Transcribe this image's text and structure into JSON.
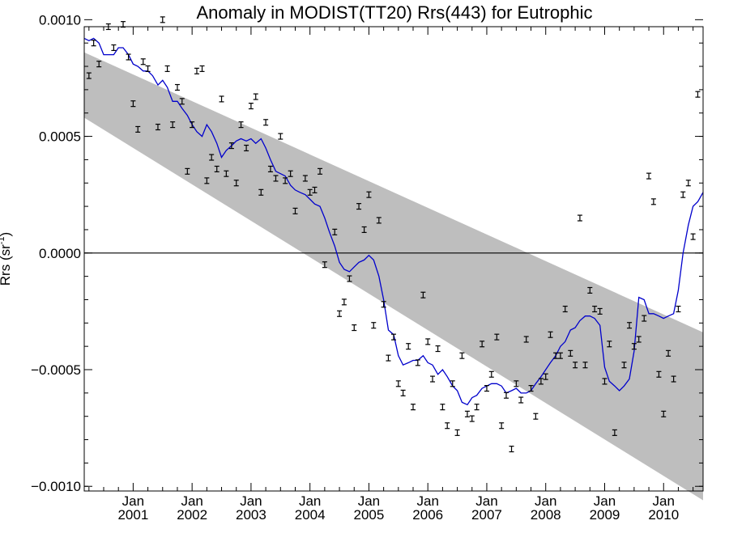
{
  "chart_data": {
    "type": "line",
    "title": "Anomaly in MODIST(TT20) Rrs(443) for Eutrophic",
    "xlabel": "",
    "ylabel": "Rrs (sr",
    "ylabel_superscript": "-1",
    "ylabel_close": ")",
    "xlim": [
      2000.17,
      2010.67
    ],
    "ylim": [
      -0.00102,
      0.00097
    ],
    "y_ticks": [
      {
        "value": 0.001,
        "label": "0.0010"
      },
      {
        "value": 0.0005,
        "label": "0.0005"
      },
      {
        "value": 0.0,
        "label": "0.0000"
      },
      {
        "value": -0.0005,
        "label": "−0.0005"
      },
      {
        "value": -0.001,
        "label": "−0.0010"
      }
    ],
    "x_ticks": [
      {
        "value": 2001.0,
        "month": "Jan",
        "year": "2001"
      },
      {
        "value": 2002.0,
        "month": "Jan",
        "year": "2002"
      },
      {
        "value": 2003.0,
        "month": "Jan",
        "year": "2003"
      },
      {
        "value": 2004.0,
        "month": "Jan",
        "year": "2004"
      },
      {
        "value": 2005.0,
        "month": "Jan",
        "year": "2005"
      },
      {
        "value": 2006.0,
        "month": "Jan",
        "year": "2006"
      },
      {
        "value": 2007.0,
        "month": "Jan",
        "year": "2007"
      },
      {
        "value": 2008.0,
        "month": "Jan",
        "year": "2008"
      },
      {
        "value": 2009.0,
        "month": "Jan",
        "year": "2009"
      },
      {
        "value": 2010.0,
        "month": "Jan",
        "year": "2010"
      }
    ],
    "zero_line": 0.0,
    "trend_band": {
      "color": "#bebebe",
      "upper": [
        [
          2000.17,
          0.00086
        ],
        [
          2010.67,
          -0.00034
        ]
      ],
      "lower": [
        [
          2000.17,
          0.00058
        ],
        [
          2010.67,
          -0.00106
        ]
      ]
    },
    "series": [
      {
        "kind": "line",
        "color": "#0000cc",
        "points": [
          [
            2000.17,
            0.00092
          ],
          [
            2000.25,
            0.00091
          ],
          [
            2000.33,
            0.00092
          ],
          [
            2000.42,
            0.0009
          ],
          [
            2000.5,
            0.00085
          ],
          [
            2000.58,
            0.00085
          ],
          [
            2000.67,
            0.00085
          ],
          [
            2000.75,
            0.00088
          ],
          [
            2000.83,
            0.00088
          ],
          [
            2000.92,
            0.00085
          ],
          [
            2001.0,
            0.00081
          ],
          [
            2001.08,
            0.0008
          ],
          [
            2001.17,
            0.00078
          ],
          [
            2001.25,
            0.00078
          ],
          [
            2001.33,
            0.00076
          ],
          [
            2001.42,
            0.00072
          ],
          [
            2001.5,
            0.00074
          ],
          [
            2001.58,
            0.00071
          ],
          [
            2001.67,
            0.00065
          ],
          [
            2001.75,
            0.00065
          ],
          [
            2001.83,
            0.00062
          ],
          [
            2001.92,
            0.00059
          ],
          [
            2002.0,
            0.00055
          ],
          [
            2002.08,
            0.00052
          ],
          [
            2002.17,
            0.0005
          ],
          [
            2002.25,
            0.00055
          ],
          [
            2002.33,
            0.00052
          ],
          [
            2002.42,
            0.00047
          ],
          [
            2002.5,
            0.00041
          ],
          [
            2002.58,
            0.00044
          ],
          [
            2002.67,
            0.00046
          ],
          [
            2002.75,
            0.00048
          ],
          [
            2002.83,
            0.00049
          ],
          [
            2002.92,
            0.00048
          ],
          [
            2003.0,
            0.00049
          ],
          [
            2003.08,
            0.00047
          ],
          [
            2003.17,
            0.00049
          ],
          [
            2003.25,
            0.00045
          ],
          [
            2003.33,
            0.0004
          ],
          [
            2003.42,
            0.00035
          ],
          [
            2003.5,
            0.00034
          ],
          [
            2003.58,
            0.00033
          ],
          [
            2003.67,
            0.00029
          ],
          [
            2003.75,
            0.00027
          ],
          [
            2003.83,
            0.00026
          ],
          [
            2003.92,
            0.00025
          ],
          [
            2004.0,
            0.00023
          ],
          [
            2004.08,
            0.00021
          ],
          [
            2004.17,
            0.0002
          ],
          [
            2004.25,
            0.00015
          ],
          [
            2004.33,
            9e-05
          ],
          [
            2004.42,
            3e-05
          ],
          [
            2004.5,
            -4e-05
          ],
          [
            2004.58,
            -7e-05
          ],
          [
            2004.67,
            -8e-05
          ],
          [
            2004.75,
            -6e-05
          ],
          [
            2004.83,
            -4e-05
          ],
          [
            2004.92,
            -3e-05
          ],
          [
            2005.0,
            -1e-05
          ],
          [
            2005.08,
            -3e-05
          ],
          [
            2005.17,
            -0.0001
          ],
          [
            2005.25,
            -0.0002
          ],
          [
            2005.33,
            -0.00033
          ],
          [
            2005.42,
            -0.00035
          ],
          [
            2005.5,
            -0.00044
          ],
          [
            2005.58,
            -0.00048
          ],
          [
            2005.67,
            -0.00047
          ],
          [
            2005.75,
            -0.00046
          ],
          [
            2005.83,
            -0.00046
          ],
          [
            2005.92,
            -0.00044
          ],
          [
            2006.0,
            -0.00047
          ],
          [
            2006.08,
            -0.00048
          ],
          [
            2006.17,
            -0.00052
          ],
          [
            2006.25,
            -0.0005
          ],
          [
            2006.33,
            -0.00053
          ],
          [
            2006.42,
            -0.00057
          ],
          [
            2006.5,
            -0.00059
          ],
          [
            2006.58,
            -0.00064
          ],
          [
            2006.67,
            -0.00065
          ],
          [
            2006.75,
            -0.00062
          ],
          [
            2006.83,
            -0.00061
          ],
          [
            2006.92,
            -0.00058
          ],
          [
            2007.0,
            -0.00057
          ],
          [
            2007.08,
            -0.00056
          ],
          [
            2007.17,
            -0.00056
          ],
          [
            2007.25,
            -0.00057
          ],
          [
            2007.33,
            -0.0006
          ],
          [
            2007.42,
            -0.00059
          ],
          [
            2007.5,
            -0.00058
          ],
          [
            2007.58,
            -0.0006
          ],
          [
            2007.67,
            -0.0006
          ],
          [
            2007.75,
            -0.00059
          ],
          [
            2007.83,
            -0.00056
          ],
          [
            2007.92,
            -0.00053
          ],
          [
            2008.0,
            -0.0005
          ],
          [
            2008.08,
            -0.00047
          ],
          [
            2008.17,
            -0.00044
          ],
          [
            2008.25,
            -0.0004
          ],
          [
            2008.33,
            -0.00038
          ],
          [
            2008.42,
            -0.00033
          ],
          [
            2008.5,
            -0.00032
          ],
          [
            2008.58,
            -0.00029
          ],
          [
            2008.67,
            -0.00027
          ],
          [
            2008.75,
            -0.00027
          ],
          [
            2008.83,
            -0.00028
          ],
          [
            2008.92,
            -0.00031
          ],
          [
            2009.0,
            -0.00049
          ],
          [
            2009.08,
            -0.00055
          ],
          [
            2009.17,
            -0.00057
          ],
          [
            2009.25,
            -0.00059
          ],
          [
            2009.33,
            -0.00057
          ],
          [
            2009.42,
            -0.00054
          ],
          [
            2009.5,
            -0.00042
          ],
          [
            2009.58,
            -0.00019
          ],
          [
            2009.67,
            -0.0002
          ],
          [
            2009.75,
            -0.00026
          ],
          [
            2009.83,
            -0.00026
          ],
          [
            2009.92,
            -0.00027
          ],
          [
            2010.0,
            -0.00028
          ],
          [
            2010.08,
            -0.00027
          ],
          [
            2010.17,
            -0.00026
          ],
          [
            2010.25,
            -0.00016
          ],
          [
            2010.33,
            0.0
          ],
          [
            2010.42,
            0.00012
          ],
          [
            2010.5,
            0.0002
          ],
          [
            2010.58,
            0.00022
          ],
          [
            2010.67,
            0.00026
          ]
        ]
      },
      {
        "kind": "errorbar",
        "color": "#000000",
        "half_width": 1.2e-05,
        "points": [
          [
            2000.25,
            0.00076
          ],
          [
            2000.33,
            0.0009
          ],
          [
            2000.42,
            0.00081
          ],
          [
            2000.58,
            0.00097
          ],
          [
            2000.67,
            0.00088
          ],
          [
            2000.83,
            0.00098
          ],
          [
            2000.92,
            0.00084
          ],
          [
            2001.0,
            0.00064
          ],
          [
            2001.08,
            0.00053
          ],
          [
            2001.17,
            0.00082
          ],
          [
            2001.25,
            0.00079
          ],
          [
            2001.42,
            0.00054
          ],
          [
            2001.5,
            0.001
          ],
          [
            2001.58,
            0.00079
          ],
          [
            2001.67,
            0.00055
          ],
          [
            2001.75,
            0.00071
          ],
          [
            2001.83,
            0.00065
          ],
          [
            2001.92,
            0.00035
          ],
          [
            2002.0,
            0.00055
          ],
          [
            2002.08,
            0.00078
          ],
          [
            2002.17,
            0.00079
          ],
          [
            2002.25,
            0.00031
          ],
          [
            2002.33,
            0.00041
          ],
          [
            2002.42,
            0.00036
          ],
          [
            2002.5,
            0.00066
          ],
          [
            2002.58,
            0.00034
          ],
          [
            2002.67,
            0.00046
          ],
          [
            2002.75,
            0.0003
          ],
          [
            2002.83,
            0.00055
          ],
          [
            2002.92,
            0.00045
          ],
          [
            2003.0,
            0.00063
          ],
          [
            2003.08,
            0.00067
          ],
          [
            2003.17,
            0.00026
          ],
          [
            2003.25,
            0.00056
          ],
          [
            2003.33,
            0.00036
          ],
          [
            2003.42,
            0.00032
          ],
          [
            2003.5,
            0.0005
          ],
          [
            2003.58,
            0.00031
          ],
          [
            2003.67,
            0.00034
          ],
          [
            2003.75,
            0.00018
          ],
          [
            2003.92,
            0.00032
          ],
          [
            2004.0,
            0.00026
          ],
          [
            2004.08,
            0.00027
          ],
          [
            2004.17,
            0.00035
          ],
          [
            2004.25,
            -5e-05
          ],
          [
            2004.42,
            9e-05
          ],
          [
            2004.5,
            -0.00026
          ],
          [
            2004.58,
            -0.00021
          ],
          [
            2004.67,
            -0.00011
          ],
          [
            2004.75,
            -0.00032
          ],
          [
            2004.83,
            0.0002
          ],
          [
            2004.92,
            0.0001
          ],
          [
            2005.0,
            0.00025
          ],
          [
            2005.08,
            -0.00031
          ],
          [
            2005.17,
            0.00014
          ],
          [
            2005.25,
            -0.00022
          ],
          [
            2005.33,
            -0.00045
          ],
          [
            2005.42,
            -0.00036
          ],
          [
            2005.5,
            -0.00056
          ],
          [
            2005.58,
            -0.0006
          ],
          [
            2005.67,
            -0.0004
          ],
          [
            2005.75,
            -0.00066
          ],
          [
            2005.83,
            -0.00047
          ],
          [
            2005.92,
            -0.00018
          ],
          [
            2006.0,
            -0.00038
          ],
          [
            2006.08,
            -0.00054
          ],
          [
            2006.17,
            -0.00041
          ],
          [
            2006.25,
            -0.00066
          ],
          [
            2006.33,
            -0.00074
          ],
          [
            2006.42,
            -0.00056
          ],
          [
            2006.5,
            -0.00077
          ],
          [
            2006.58,
            -0.00044
          ],
          [
            2006.67,
            -0.00069
          ],
          [
            2006.75,
            -0.00071
          ],
          [
            2006.83,
            -0.00066
          ],
          [
            2006.92,
            -0.00039
          ],
          [
            2007.0,
            -0.00058
          ],
          [
            2007.08,
            -0.00052
          ],
          [
            2007.17,
            -0.00036
          ],
          [
            2007.25,
            -0.00074
          ],
          [
            2007.33,
            -0.00061
          ],
          [
            2007.42,
            -0.00084
          ],
          [
            2007.5,
            -0.00056
          ],
          [
            2007.58,
            -0.00063
          ],
          [
            2007.67,
            -0.00037
          ],
          [
            2007.75,
            -0.00058
          ],
          [
            2007.83,
            -0.0007
          ],
          [
            2007.92,
            -0.00055
          ],
          [
            2008.0,
            -0.00053
          ],
          [
            2008.08,
            -0.00035
          ],
          [
            2008.17,
            -0.00044
          ],
          [
            2008.25,
            -0.00044
          ],
          [
            2008.33,
            -0.00024
          ],
          [
            2008.42,
            -0.00043
          ],
          [
            2008.5,
            -0.00048
          ],
          [
            2008.58,
            0.00015
          ],
          [
            2008.67,
            -0.00048
          ],
          [
            2008.75,
            -0.00016
          ],
          [
            2008.83,
            -0.00024
          ],
          [
            2008.92,
            -0.00025
          ],
          [
            2009.0,
            -0.00055
          ],
          [
            2009.08,
            -0.00039
          ],
          [
            2009.17,
            -0.00077
          ],
          [
            2009.33,
            -0.00048
          ],
          [
            2009.42,
            -0.00031
          ],
          [
            2009.5,
            -0.0004
          ],
          [
            2009.58,
            -0.00037
          ],
          [
            2009.67,
            -0.00028
          ],
          [
            2009.75,
            0.00033
          ],
          [
            2009.83,
            0.00022
          ],
          [
            2009.92,
            -0.00052
          ],
          [
            2010.0,
            -0.00069
          ],
          [
            2010.08,
            -0.00043
          ],
          [
            2010.17,
            -0.00054
          ],
          [
            2010.25,
            -0.00024
          ],
          [
            2010.33,
            0.00025
          ],
          [
            2010.42,
            0.0003
          ],
          [
            2010.5,
            7e-05
          ],
          [
            2010.58,
            0.00068
          ]
        ]
      }
    ]
  }
}
